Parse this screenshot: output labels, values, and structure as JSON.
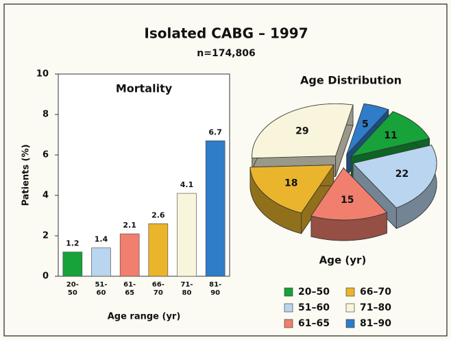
{
  "title": "Isolated CABG – 1997",
  "subtitle": "n=174,806",
  "chart_data": [
    {
      "type": "bar",
      "title": "Mortality",
      "ylabel": "Patients (%)",
      "xlabel": "Age range (yr)",
      "categories": [
        "20-50",
        "51-60",
        "61-65",
        "66-70",
        "71-80",
        "81-90"
      ],
      "values": [
        1.2,
        1.4,
        2.1,
        2.6,
        4.1,
        6.7
      ],
      "colors": [
        "#17a23a",
        "#b9d5ef",
        "#f07f6e",
        "#eab52c",
        "#f8f5dc",
        "#2f7cc8"
      ],
      "ylim": [
        0,
        10
      ],
      "yticks": [
        0,
        2,
        4,
        6,
        8,
        10
      ],
      "grid": false
    },
    {
      "type": "pie",
      "title": "Age Distribution",
      "xlabel": "Age (yr)",
      "categories": [
        "20–50",
        "51–60",
        "61–65",
        "66–70",
        "71–80",
        "81–90"
      ],
      "values": [
        11,
        22,
        15,
        18,
        29,
        5
      ],
      "colors": [
        "#17a23a",
        "#b9d5ef",
        "#f07f6e",
        "#eab52c",
        "#f8f5dc",
        "#2f7cc8"
      ],
      "legend": "bottom"
    }
  ]
}
